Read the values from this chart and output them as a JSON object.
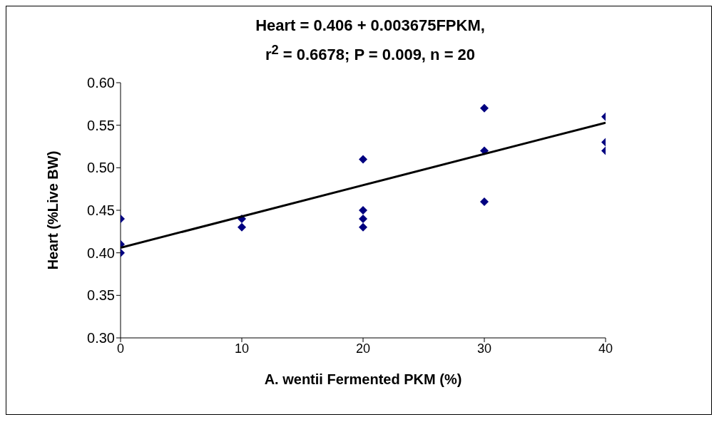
{
  "chart_data": {
    "type": "scatter",
    "title": "Heart = 0.406 + 0.003675FPKM,",
    "subtitle": "r$^{2}$ = 0.6678;  P = 0.009, n = 20",
    "xlabel": "A. wentii Fermented PKM (%)",
    "ylabel": "Heart (%Live BW)",
    "xlim": [
      0,
      40
    ],
    "xticks": [
      0,
      10,
      20,
      30,
      40
    ],
    "ylim": [
      0.3,
      0.6
    ],
    "yticks": [
      {
        "value": 0.3,
        "label": "0.30"
      },
      {
        "value": 0.35,
        "label": "0.35"
      },
      {
        "value": 0.4,
        "label": "0.40"
      },
      {
        "value": 0.45,
        "label": "0.45"
      },
      {
        "value": 0.5,
        "label": "0.50"
      },
      {
        "value": 0.55,
        "label": "0.55"
      },
      {
        "value": 0.6,
        "label": "0.60"
      }
    ],
    "grid": false,
    "legend": false,
    "marker": "diamond",
    "series": [
      {
        "color": "#000080",
        "x": [
          0,
          0,
          0,
          10,
          10,
          20,
          20,
          20,
          20,
          30,
          30,
          30,
          40,
          40,
          40
        ],
        "values": [
          0.44,
          0.41,
          0.4,
          0.44,
          0.43,
          0.51,
          0.45,
          0.44,
          0.43,
          0.57,
          0.52,
          0.46,
          0.56,
          0.53,
          0.52
        ]
      },
      {
        "type": "line",
        "color": "#000000",
        "marker": "none",
        "line_style": "solid",
        "x": [
          0,
          40
        ],
        "values": [
          0.406,
          0.553
        ]
      }
    ]
  }
}
